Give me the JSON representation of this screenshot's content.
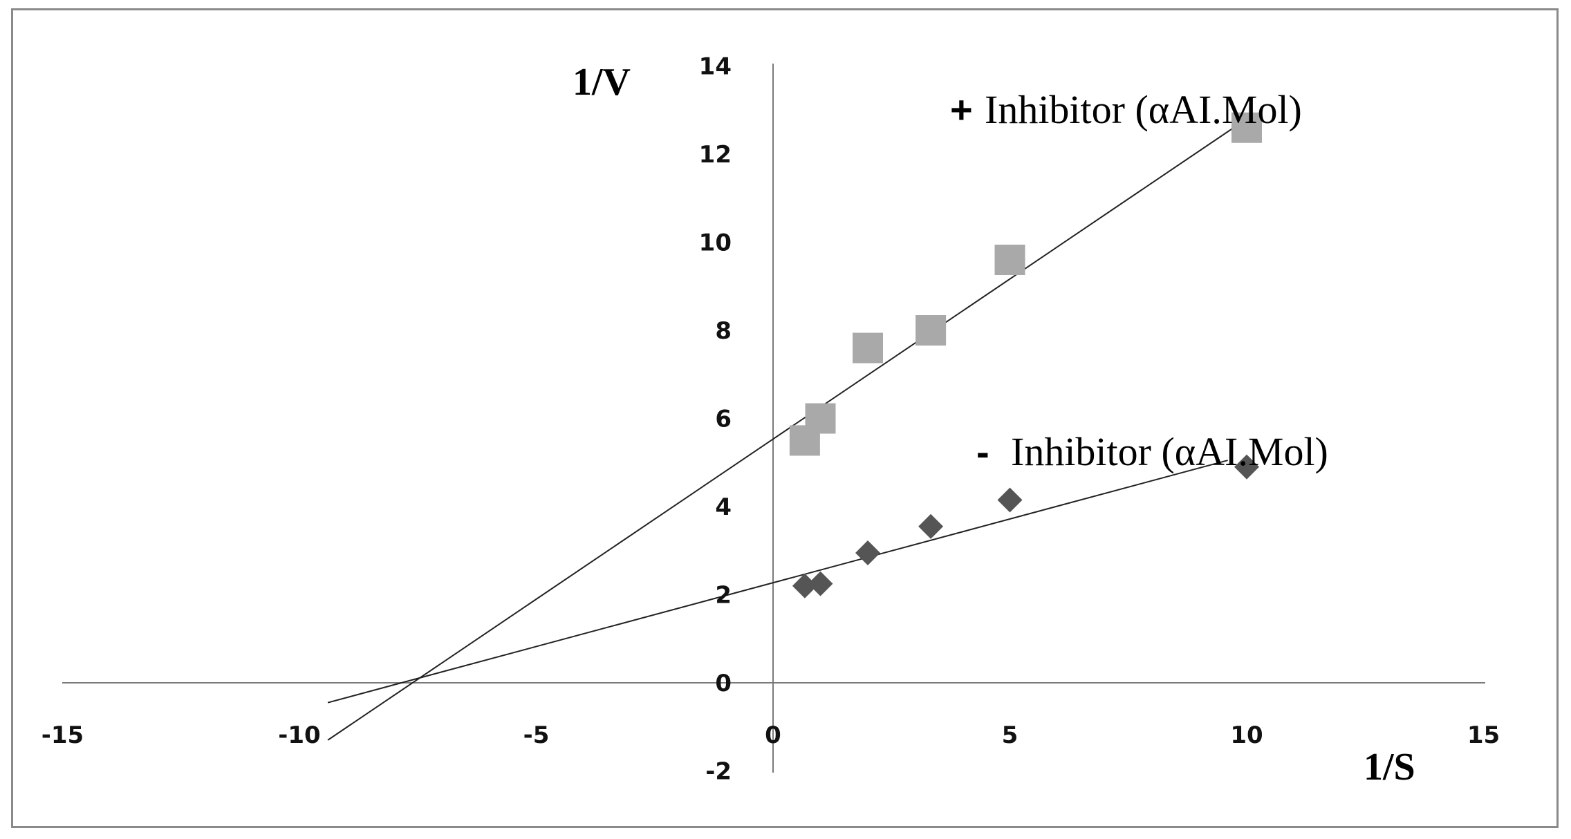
{
  "chart_data": {
    "type": "scatter",
    "title": "",
    "xlabel": "1/S",
    "ylabel": "1/V",
    "xlim": [
      -15,
      15
    ],
    "ylim": [
      -2,
      14
    ],
    "xticks": [
      -15,
      -10,
      -5,
      0,
      5,
      10,
      15
    ],
    "yticks": [
      -2,
      0,
      2,
      4,
      6,
      8,
      10,
      12,
      14
    ],
    "grid": false,
    "legend": "none",
    "series": [
      {
        "name": "+ Inhibitor (αAI.Mol)",
        "label_sign": "+",
        "label_text": "Inhibitor (αAI.Mol)",
        "marker": "square",
        "color": "#a9a9a9",
        "points": [
          {
            "x": 0.67,
            "y": 5.5
          },
          {
            "x": 1.0,
            "y": 6.0
          },
          {
            "x": 2.0,
            "y": 7.6
          },
          {
            "x": 3.33,
            "y": 8.0
          },
          {
            "x": 5.0,
            "y": 9.6
          },
          {
            "x": 10.0,
            "y": 12.6
          }
        ],
        "trendline": {
          "x": [
            -9.4,
            10.0
          ],
          "y": [
            -1.3,
            12.8
          ]
        }
      },
      {
        "name": "- Inhibitor (αAI.Mol)",
        "label_sign": "-",
        "label_text": "Inhibitor (αAI.Mol)",
        "marker": "diamond",
        "color": "#555555",
        "points": [
          {
            "x": 0.67,
            "y": 2.2
          },
          {
            "x": 1.0,
            "y": 2.25
          },
          {
            "x": 2.0,
            "y": 2.95
          },
          {
            "x": 3.33,
            "y": 3.55
          },
          {
            "x": 5.0,
            "y": 4.15
          },
          {
            "x": 10.0,
            "y": 4.9
          }
        ],
        "trendline": {
          "x": [
            -9.4,
            9.6
          ],
          "y": [
            -0.45,
            5.05
          ]
        }
      }
    ]
  }
}
